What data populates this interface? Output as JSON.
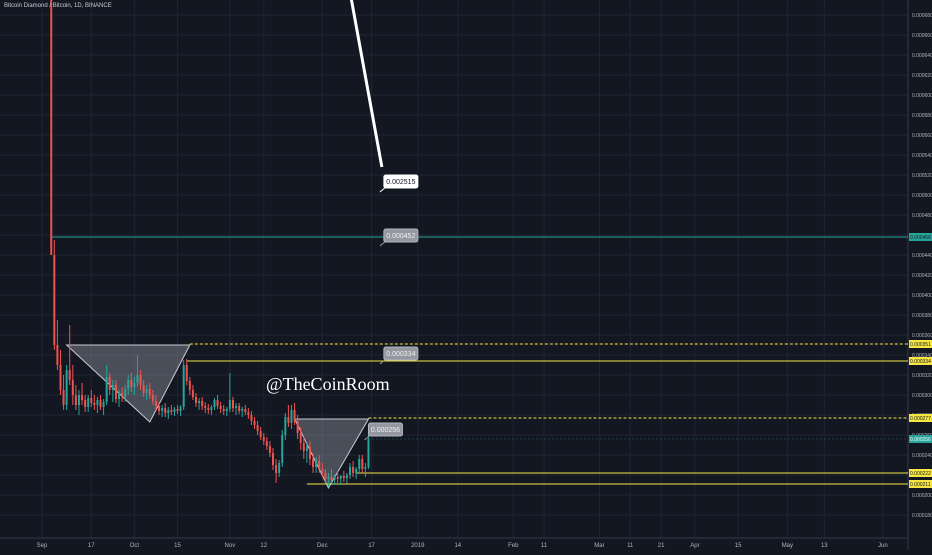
{
  "chart_data": {
    "type": "candlestick",
    "title": "Bitcoin Diamond / Bitcoin, 1D, BINANCE",
    "watermark": "@TheCoinRoom",
    "xlabel": "",
    "ylabel": "",
    "ylim": [
      0.000157,
      0.000695
    ],
    "y_ticks": [
      "0.000180",
      "0.000200",
      "0.000220",
      "0.000240",
      "0.000260",
      "0.000280",
      "0.000300",
      "0.000320",
      "0.000340",
      "0.000360",
      "0.000380",
      "0.000400",
      "0.000420",
      "0.000440",
      "0.000460",
      "0.000480",
      "0.000500",
      "0.000520",
      "0.000540",
      "0.000560",
      "0.000580",
      "0.000600",
      "0.000620",
      "0.000640",
      "0.000660",
      "0.000680"
    ],
    "x_ticks": [
      {
        "label": "Sep",
        "day": 0
      },
      {
        "label": "17",
        "day": 16
      },
      {
        "label": "Oct",
        "day": 30
      },
      {
        "label": "15",
        "day": 44
      },
      {
        "label": "Nov",
        "day": 61
      },
      {
        "label": "12",
        "day": 72
      },
      {
        "label": "Dec",
        "day": 91
      },
      {
        "label": "17",
        "day": 107
      },
      {
        "label": "2019",
        "day": 122
      },
      {
        "label": "14",
        "day": 135
      },
      {
        "label": "Feb",
        "day": 153
      },
      {
        "label": "11",
        "day": 163
      },
      {
        "label": "Mar",
        "day": 181
      },
      {
        "label": "11",
        "day": 191
      },
      {
        "label": "21",
        "day": 201
      },
      {
        "label": "Apr",
        "day": 212
      },
      {
        "label": "15",
        "day": 226
      },
      {
        "label": "May",
        "day": 242
      },
      {
        "label": "13",
        "day": 254
      },
      {
        "label": "Jun",
        "day": 273
      }
    ],
    "candles": [
      {
        "day": 3,
        "o": 0.0007,
        "h": 0.0007,
        "l": 0.00044,
        "c": 0.00044
      },
      {
        "day": 4,
        "o": 0.00044,
        "h": 0.000455,
        "l": 0.000345,
        "c": 0.00035
      },
      {
        "day": 5,
        "o": 0.00035,
        "h": 0.000375,
        "l": 0.000325,
        "c": 0.00033
      },
      {
        "day": 6,
        "o": 0.00033,
        "h": 0.000345,
        "l": 0.0003,
        "c": 0.000305
      },
      {
        "day": 7,
        "o": 0.000305,
        "h": 0.00032,
        "l": 0.000285,
        "c": 0.00029
      },
      {
        "day": 8,
        "o": 0.00029,
        "h": 0.00033,
        "l": 0.000285,
        "c": 0.000325
      },
      {
        "day": 9,
        "o": 0.000325,
        "h": 0.00037,
        "l": 0.00031,
        "c": 0.000315
      },
      {
        "day": 10,
        "o": 0.000315,
        "h": 0.00033,
        "l": 0.00029,
        "c": 0.0003
      },
      {
        "day": 11,
        "o": 0.0003,
        "h": 0.00031,
        "l": 0.000285,
        "c": 0.00029
      },
      {
        "day": 12,
        "o": 0.00029,
        "h": 0.000305,
        "l": 0.00028,
        "c": 0.0003
      },
      {
        "day": 13,
        "o": 0.0003,
        "h": 0.000312,
        "l": 0.00029,
        "c": 0.000295
      },
      {
        "day": 14,
        "o": 0.000295,
        "h": 0.0003,
        "l": 0.000283,
        "c": 0.000288
      },
      {
        "day": 15,
        "o": 0.000288,
        "h": 0.0003,
        "l": 0.000283,
        "c": 0.000297
      },
      {
        "day": 16,
        "o": 0.000297,
        "h": 0.000305,
        "l": 0.000288,
        "c": 0.000292
      },
      {
        "day": 17,
        "o": 0.000292,
        "h": 0.0003,
        "l": 0.000285,
        "c": 0.00029
      },
      {
        "day": 18,
        "o": 0.00029,
        "h": 0.000298,
        "l": 0.000282,
        "c": 0.000295
      },
      {
        "day": 19,
        "o": 0.000295,
        "h": 0.0003,
        "l": 0.000285,
        "c": 0.000288
      },
      {
        "day": 20,
        "o": 0.000288,
        "h": 0.000296,
        "l": 0.00028,
        "c": 0.000293
      },
      {
        "day": 21,
        "o": 0.000293,
        "h": 0.00033,
        "l": 0.00029,
        "c": 0.000318
      },
      {
        "day": 22,
        "o": 0.000318,
        "h": 0.000322,
        "l": 0.0003,
        "c": 0.000305
      },
      {
        "day": 23,
        "o": 0.000305,
        "h": 0.000315,
        "l": 0.000293,
        "c": 0.00031
      },
      {
        "day": 24,
        "o": 0.00031,
        "h": 0.000315,
        "l": 0.000292,
        "c": 0.000296
      },
      {
        "day": 25,
        "o": 0.000296,
        "h": 0.000305,
        "l": 0.000288,
        "c": 0.000302
      },
      {
        "day": 26,
        "o": 0.000302,
        "h": 0.000308,
        "l": 0.000293,
        "c": 0.000298
      },
      {
        "day": 27,
        "o": 0.000298,
        "h": 0.00031,
        "l": 0.000293,
        "c": 0.000306
      },
      {
        "day": 28,
        "o": 0.000306,
        "h": 0.00032,
        "l": 0.0003,
        "c": 0.000315
      },
      {
        "day": 29,
        "o": 0.000315,
        "h": 0.000322,
        "l": 0.000303,
        "c": 0.000308
      },
      {
        "day": 30,
        "o": 0.000308,
        "h": 0.000318,
        "l": 0.0003,
        "c": 0.000312
      },
      {
        "day": 31,
        "o": 0.000312,
        "h": 0.00034,
        "l": 0.000308,
        "c": 0.00032
      },
      {
        "day": 32,
        "o": 0.00032,
        "h": 0.000325,
        "l": 0.000305,
        "c": 0.00031
      },
      {
        "day": 33,
        "o": 0.00031,
        "h": 0.000315,
        "l": 0.000298,
        "c": 0.000302
      },
      {
        "day": 34,
        "o": 0.000302,
        "h": 0.00031,
        "l": 0.000295,
        "c": 0.000306
      },
      {
        "day": 35,
        "o": 0.000306,
        "h": 0.000312,
        "l": 0.000296,
        "c": 0.0003
      },
      {
        "day": 36,
        "o": 0.0003,
        "h": 0.000305,
        "l": 0.00029,
        "c": 0.000294
      },
      {
        "day": 37,
        "o": 0.000294,
        "h": 0.0003,
        "l": 0.000285,
        "c": 0.000289
      },
      {
        "day": 38,
        "o": 0.000289,
        "h": 0.000293,
        "l": 0.00028,
        "c": 0.000284
      },
      {
        "day": 39,
        "o": 0.000284,
        "h": 0.00029,
        "l": 0.000278,
        "c": 0.000287
      },
      {
        "day": 40,
        "o": 0.000287,
        "h": 0.000292,
        "l": 0.000278,
        "c": 0.000282
      },
      {
        "day": 41,
        "o": 0.000282,
        "h": 0.000288,
        "l": 0.000276,
        "c": 0.000285
      },
      {
        "day": 42,
        "o": 0.000285,
        "h": 0.00029,
        "l": 0.00028,
        "c": 0.000283
      },
      {
        "day": 43,
        "o": 0.000283,
        "h": 0.000288,
        "l": 0.000279,
        "c": 0.000286
      },
      {
        "day": 44,
        "o": 0.000286,
        "h": 0.00029,
        "l": 0.000281,
        "c": 0.000284
      },
      {
        "day": 45,
        "o": 0.000284,
        "h": 0.00029,
        "l": 0.000279,
        "c": 0.000288
      },
      {
        "day": 46,
        "o": 0.000288,
        "h": 0.000335,
        "l": 0.000285,
        "c": 0.00033
      },
      {
        "day": 47,
        "o": 0.00033,
        "h": 0.000336,
        "l": 0.00031,
        "c": 0.000314
      },
      {
        "day": 48,
        "o": 0.000314,
        "h": 0.000318,
        "l": 0.0003,
        "c": 0.000305
      },
      {
        "day": 49,
        "o": 0.000305,
        "h": 0.00031,
        "l": 0.000295,
        "c": 0.000298
      },
      {
        "day": 50,
        "o": 0.000298,
        "h": 0.000302,
        "l": 0.000288,
        "c": 0.000292
      },
      {
        "day": 51,
        "o": 0.000292,
        "h": 0.000297,
        "l": 0.000285,
        "c": 0.000294
      },
      {
        "day": 52,
        "o": 0.000294,
        "h": 0.000298,
        "l": 0.000285,
        "c": 0.000289
      },
      {
        "day": 53,
        "o": 0.000289,
        "h": 0.000293,
        "l": 0.000282,
        "c": 0.000287
      },
      {
        "day": 54,
        "o": 0.000287,
        "h": 0.000291,
        "l": 0.000281,
        "c": 0.000285
      },
      {
        "day": 55,
        "o": 0.000285,
        "h": 0.00029,
        "l": 0.00028,
        "c": 0.000288
      },
      {
        "day": 56,
        "o": 0.000288,
        "h": 0.000297,
        "l": 0.000285,
        "c": 0.000295
      },
      {
        "day": 57,
        "o": 0.000295,
        "h": 0.0003,
        "l": 0.000286,
        "c": 0.000289
      },
      {
        "day": 58,
        "o": 0.000289,
        "h": 0.000293,
        "l": 0.000282,
        "c": 0.000286
      },
      {
        "day": 59,
        "o": 0.000286,
        "h": 0.00029,
        "l": 0.00028,
        "c": 0.000284
      },
      {
        "day": 60,
        "o": 0.000284,
        "h": 0.000288,
        "l": 0.000279,
        "c": 0.000286
      },
      {
        "day": 61,
        "o": 0.000286,
        "h": 0.000322,
        "l": 0.000283,
        "c": 0.000295
      },
      {
        "day": 62,
        "o": 0.000295,
        "h": 0.000298,
        "l": 0.000283,
        "c": 0.000287
      },
      {
        "day": 63,
        "o": 0.000287,
        "h": 0.000292,
        "l": 0.00028,
        "c": 0.000289
      },
      {
        "day": 64,
        "o": 0.000289,
        "h": 0.000292,
        "l": 0.000281,
        "c": 0.000284
      },
      {
        "day": 65,
        "o": 0.000284,
        "h": 0.000288,
        "l": 0.000278,
        "c": 0.000286
      },
      {
        "day": 66,
        "o": 0.000286,
        "h": 0.00029,
        "l": 0.00028,
        "c": 0.000283
      },
      {
        "day": 67,
        "o": 0.000283,
        "h": 0.000287,
        "l": 0.000276,
        "c": 0.00028
      },
      {
        "day": 68,
        "o": 0.00028,
        "h": 0.000284,
        "l": 0.00027,
        "c": 0.000274
      },
      {
        "day": 69,
        "o": 0.000274,
        "h": 0.000278,
        "l": 0.000266,
        "c": 0.00027
      },
      {
        "day": 70,
        "o": 0.00027,
        "h": 0.000274,
        "l": 0.00026,
        "c": 0.000264
      },
      {
        "day": 71,
        "o": 0.000264,
        "h": 0.000268,
        "l": 0.000255,
        "c": 0.000258
      },
      {
        "day": 72,
        "o": 0.000258,
        "h": 0.000262,
        "l": 0.00025,
        "c": 0.000254
      },
      {
        "day": 73,
        "o": 0.000254,
        "h": 0.000258,
        "l": 0.000245,
        "c": 0.000249
      },
      {
        "day": 74,
        "o": 0.000249,
        "h": 0.000254,
        "l": 0.000238,
        "c": 0.000242
      },
      {
        "day": 75,
        "o": 0.000242,
        "h": 0.000247,
        "l": 0.000225,
        "c": 0.00023
      },
      {
        "day": 76,
        "o": 0.00023,
        "h": 0.000236,
        "l": 0.000212,
        "c": 0.000222
      },
      {
        "day": 77,
        "o": 0.000222,
        "h": 0.000235,
        "l": 0.000218,
        "c": 0.000232
      },
      {
        "day": 78,
        "o": 0.000232,
        "h": 0.000265,
        "l": 0.000228,
        "c": 0.00026
      },
      {
        "day": 79,
        "o": 0.00026,
        "h": 0.000282,
        "l": 0.000255,
        "c": 0.000278
      },
      {
        "day": 80,
        "o": 0.000278,
        "h": 0.00029,
        "l": 0.000268,
        "c": 0.000272
      },
      {
        "day": 81,
        "o": 0.000272,
        "h": 0.00029,
        "l": 0.000266,
        "c": 0.000285
      },
      {
        "day": 82,
        "o": 0.000285,
        "h": 0.000292,
        "l": 0.00027,
        "c": 0.000274
      },
      {
        "day": 83,
        "o": 0.000274,
        "h": 0.00028,
        "l": 0.000256,
        "c": 0.000262
      },
      {
        "day": 84,
        "o": 0.000262,
        "h": 0.000268,
        "l": 0.000245,
        "c": 0.000252
      },
      {
        "day": 85,
        "o": 0.000252,
        "h": 0.000258,
        "l": 0.000236,
        "c": 0.000244
      },
      {
        "day": 86,
        "o": 0.000244,
        "h": 0.000252,
        "l": 0.000232,
        "c": 0.000248
      },
      {
        "day": 87,
        "o": 0.000248,
        "h": 0.000254,
        "l": 0.00023,
        "c": 0.000236
      },
      {
        "day": 88,
        "o": 0.000236,
        "h": 0.000242,
        "l": 0.000222,
        "c": 0.000228
      },
      {
        "day": 89,
        "o": 0.000228,
        "h": 0.000238,
        "l": 0.000222,
        "c": 0.000234
      },
      {
        "day": 90,
        "o": 0.000234,
        "h": 0.00024,
        "l": 0.000222,
        "c": 0.000226
      },
      {
        "day": 91,
        "o": 0.000226,
        "h": 0.000232,
        "l": 0.000218,
        "c": 0.000222
      },
      {
        "day": 92,
        "o": 0.000222,
        "h": 0.000226,
        "l": 0.000212,
        "c": 0.000216
      },
      {
        "day": 93,
        "o": 0.000216,
        "h": 0.000222,
        "l": 0.000208,
        "c": 0.000218
      },
      {
        "day": 94,
        "o": 0.000218,
        "h": 0.000226,
        "l": 0.000212,
        "c": 0.000215
      },
      {
        "day": 95,
        "o": 0.000215,
        "h": 0.00022,
        "l": 0.00021,
        "c": 0.000218
      },
      {
        "day": 96,
        "o": 0.000218,
        "h": 0.000224,
        "l": 0.000212,
        "c": 0.000216
      },
      {
        "day": 97,
        "o": 0.000216,
        "h": 0.00022,
        "l": 0.00021,
        "c": 0.000219
      },
      {
        "day": 98,
        "o": 0.000219,
        "h": 0.000224,
        "l": 0.000213,
        "c": 0.000217
      },
      {
        "day": 99,
        "o": 0.000217,
        "h": 0.000222,
        "l": 0.000212,
        "c": 0.00022
      },
      {
        "day": 100,
        "o": 0.00022,
        "h": 0.000232,
        "l": 0.000216,
        "c": 0.000228
      },
      {
        "day": 101,
        "o": 0.000228,
        "h": 0.000234,
        "l": 0.000218,
        "c": 0.000222
      },
      {
        "day": 102,
        "o": 0.000222,
        "h": 0.000228,
        "l": 0.000216,
        "c": 0.000226
      },
      {
        "day": 103,
        "o": 0.000226,
        "h": 0.00024,
        "l": 0.000222,
        "c": 0.000236
      },
      {
        "day": 104,
        "o": 0.000236,
        "h": 0.00024,
        "l": 0.000222,
        "c": 0.000226
      },
      {
        "day": 105,
        "o": 0.000226,
        "h": 0.000232,
        "l": 0.000218,
        "c": 0.000228
      },
      {
        "day": 106,
        "o": 0.000228,
        "h": 0.00026,
        "l": 0.000226,
        "c": 0.000256
      }
    ],
    "shapes": [
      {
        "kind": "triangle",
        "points": [
          [
            8,
            0.00035
          ],
          [
            48,
            0.00035
          ],
          [
            35,
            0.000273
          ]
        ]
      },
      {
        "kind": "triangle",
        "points": [
          [
            82,
            0.000276
          ],
          [
            106,
            0.000276
          ],
          [
            93,
            0.000207
          ]
        ]
      }
    ],
    "levels": [
      {
        "y": 0.000458,
        "x_start": 3,
        "style": "solid",
        "color": "#26a69a",
        "label": "0.000458"
      },
      {
        "y": 0.000351,
        "x_start": 48,
        "style": "dashed",
        "color": "#f5e642",
        "label": "0.000351"
      },
      {
        "y": 0.000334,
        "x_start": 47,
        "style": "solid",
        "color": "#f5e642",
        "label": "0.000334"
      },
      {
        "y": 0.000277,
        "x_start": 106,
        "style": "dashed",
        "color": "#f5e642",
        "label": "0.000277"
      },
      {
        "y": 0.000222,
        "x_start": 102,
        "style": "solid",
        "color": "#f5e642",
        "label": "0.000222"
      },
      {
        "y": 0.000211,
        "x_start": 86,
        "style": "solid",
        "color": "#f5e642",
        "label": "0.000211"
      }
    ],
    "current_price": {
      "value": "0.000256",
      "color": "#26a69a"
    },
    "callouts": [
      {
        "text": "0.002515",
        "x": 111,
        "y": 0.00052,
        "style": "white"
      },
      {
        "text": "0.000452",
        "x": 111,
        "y": 0.000466,
        "style": "gray"
      },
      {
        "text": "0.000334",
        "x": 111,
        "y": 0.000348,
        "style": "gray"
      },
      {
        "text": "0.000256",
        "x": 106,
        "y": 0.000272,
        "style": "gray"
      }
    ],
    "arrow": {
      "from": [
        99,
        0.0007
      ],
      "to": [
        111,
        0.00052
      ],
      "color": "#ffffff"
    },
    "colors": {
      "background": "#131722",
      "grid": "#1f2433",
      "up": "#26a69a",
      "down": "#ef5350",
      "axis_text": "#b2b5be"
    }
  }
}
